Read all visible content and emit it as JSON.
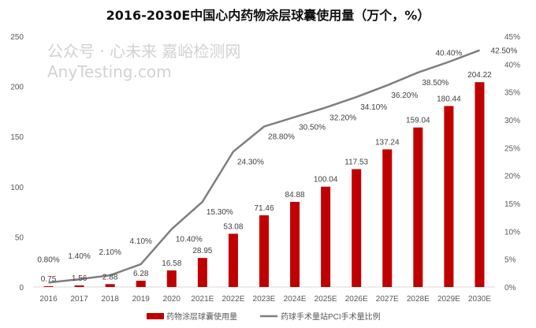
{
  "chart_data": {
    "type": "bar+line",
    "title": "2016-2030E中国心内药物涂层球囊使用量（万个，%）",
    "categories": [
      "2016",
      "2017",
      "2018",
      "2019",
      "2020",
      "2021E",
      "2022E",
      "2023E",
      "2024E",
      "2025E",
      "2026E",
      "2027E",
      "2028E",
      "2029E",
      "2030E"
    ],
    "series": [
      {
        "name": "药物涂层球囊使用量",
        "type": "bar",
        "axis": "left",
        "color": "#C00000",
        "values": [
          0.75,
          1.56,
          2.88,
          6.28,
          16.58,
          28.95,
          53.08,
          71.46,
          84.88,
          100.04,
          117.53,
          137.24,
          159.04,
          180.44,
          204.22
        ],
        "labels": [
          "0.75",
          "1.56",
          "2.88",
          "6.28",
          "16.58",
          "28.95",
          "53.08",
          "71.46",
          "84.88",
          "100.04",
          "117.53",
          "137.24",
          "159.04",
          "180.44",
          "204.22"
        ]
      },
      {
        "name": "药球手术量站PCI手术量比例",
        "type": "line",
        "axis": "right",
        "color": "#7F7F7F",
        "values": [
          0.8,
          1.4,
          2.1,
          4.1,
          10.4,
          15.3,
          24.3,
          28.8,
          30.5,
          32.2,
          34.1,
          36.2,
          38.5,
          40.4,
          42.5
        ],
        "labels": [
          "0.80%",
          "1.40%",
          "2.10%",
          "4.10%",
          "10.40%",
          "15.30%",
          "24.30%",
          "28.80%",
          "30.50%",
          "32.20%",
          "34.10%",
          "36.20%",
          "38.50%",
          "40.40%",
          "42.50%"
        ]
      }
    ],
    "left_axis": {
      "ylim": [
        0,
        250
      ],
      "ticks": [
        "0",
        "50",
        "100",
        "150",
        "200",
        "250"
      ]
    },
    "right_axis": {
      "ylim": [
        0,
        45
      ],
      "ticks": [
        "0%",
        "5%",
        "10%",
        "15%",
        "20%",
        "25%",
        "30%",
        "35%",
        "40%",
        "45%"
      ]
    },
    "grid": false,
    "legend": "bottom"
  },
  "watermark": "公众号 · 心未来 嘉峪检测网 AnyTesting.com"
}
